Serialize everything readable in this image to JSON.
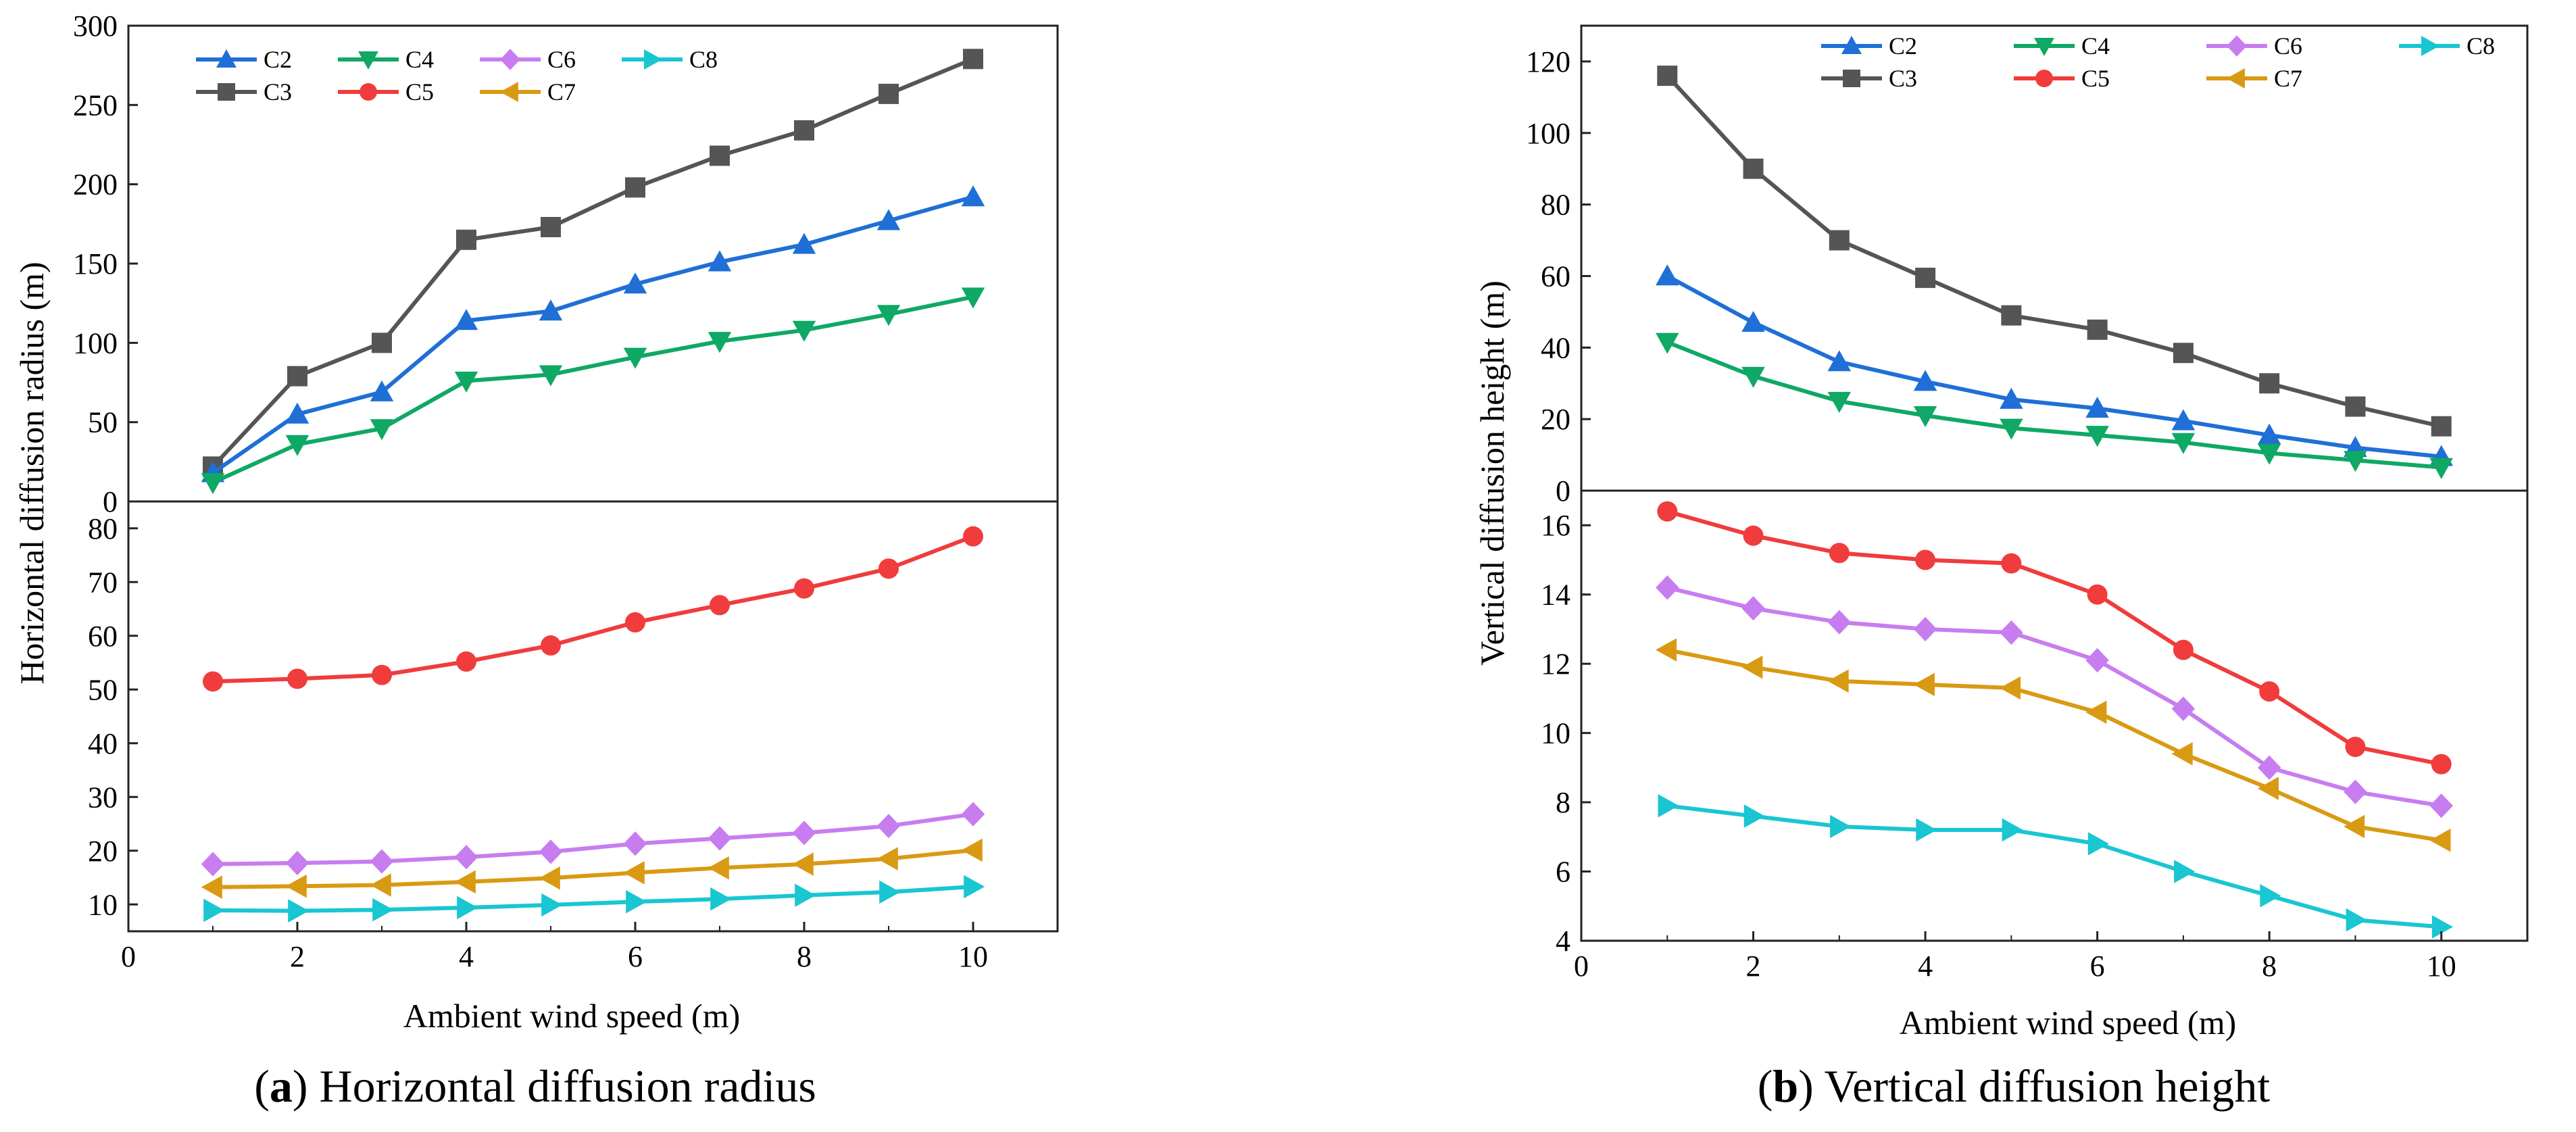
{
  "colors": {
    "C2": "#1f6fd6",
    "C3": "#555555",
    "C4": "#0fa864",
    "C5": "#f03c3c",
    "C6": "#c77df0",
    "C7": "#d99a13",
    "C8": "#19c6d1"
  },
  "markers": {
    "C2": "triangle-up",
    "C3": "square",
    "C4": "triangle-down",
    "C5": "circle",
    "C6": "diamond",
    "C7": "triangle-left",
    "C8": "triangle-right"
  },
  "chart_data": [
    {
      "type": "line",
      "id": "a",
      "caption_letter": "a",
      "caption_text": ") Horizontal diffusion radius",
      "caption_open": "(",
      "xlabel": "Ambient wind speed (m)",
      "ylabel": "Horizontal diffusion radius (m)",
      "xlim": [
        0,
        11
      ],
      "xticks": [
        0,
        2,
        4,
        6,
        8,
        10
      ],
      "x": [
        1,
        2,
        3,
        4,
        5,
        6,
        7,
        8,
        9,
        10
      ],
      "legend": {
        "row1": [
          "C2",
          "C4",
          "C6",
          "C8"
        ],
        "row2": [
          "C3",
          "C5",
          "C7"
        ]
      },
      "panels": [
        {
          "position": "top",
          "ylim": [
            0,
            300
          ],
          "yticks": [
            0,
            50,
            100,
            150,
            200,
            250,
            300
          ],
          "series": [
            {
              "name": "C3",
              "values": [
                22,
                79,
                100,
                165,
                173,
                198,
                218,
                234,
                257,
                279
              ]
            },
            {
              "name": "C2",
              "values": [
                18,
                55,
                69,
                114,
                120,
                137,
                151,
                162,
                177,
                192
              ]
            },
            {
              "name": "C4",
              "values": [
                12,
                36,
                46,
                76,
                80,
                91,
                101,
                108,
                118,
                129
              ]
            }
          ]
        },
        {
          "position": "bottom",
          "ylim": [
            5,
            85
          ],
          "yticks": [
            10,
            20,
            30,
            40,
            50,
            60,
            70,
            80
          ],
          "series": [
            {
              "name": "C5",
              "values": [
                51.5,
                52,
                52.7,
                55.2,
                58.2,
                62.5,
                65.7,
                68.8,
                72.5,
                78.5
              ]
            },
            {
              "name": "C6",
              "values": [
                17.5,
                17.7,
                18,
                18.8,
                19.8,
                21.3,
                22.3,
                23.3,
                24.6,
                26.8
              ]
            },
            {
              "name": "C7",
              "values": [
                13.2,
                13.4,
                13.6,
                14.2,
                14.9,
                15.9,
                16.8,
                17.5,
                18.5,
                20.1
              ]
            },
            {
              "name": "C8",
              "values": [
                8.9,
                8.8,
                9,
                9.4,
                9.9,
                10.5,
                11,
                11.7,
                12.3,
                13.3
              ]
            }
          ]
        }
      ]
    },
    {
      "type": "line",
      "id": "b",
      "caption_letter": "b",
      "caption_text": ") Vertical diffusion height",
      "caption_open": "(",
      "xlabel": "Ambient wind speed (m)",
      "ylabel": "Vertical diffusion height (m)",
      "xlim": [
        0,
        11
      ],
      "xticks": [
        0,
        2,
        4,
        6,
        8,
        10
      ],
      "x": [
        1,
        2,
        3,
        4,
        5,
        6,
        7,
        8,
        9,
        10
      ],
      "legend": {
        "row1": [
          "C2",
          "C4",
          "C6",
          "C8"
        ],
        "row2": [
          "C3",
          "C5",
          "C7"
        ]
      },
      "panels": [
        {
          "position": "top",
          "ylim": [
            0,
            130
          ],
          "yticks": [
            0,
            20,
            40,
            60,
            80,
            100,
            120
          ],
          "series": [
            {
              "name": "C3",
              "values": [
                116,
                90,
                70,
                59.5,
                49,
                45,
                38.5,
                30,
                23.5,
                18
              ]
            },
            {
              "name": "C2",
              "values": [
                60,
                47,
                36,
                30.5,
                25.5,
                23,
                19.5,
                15.5,
                12,
                9.5
              ]
            },
            {
              "name": "C4",
              "values": [
                41.5,
                32,
                25,
                21,
                17.5,
                15.5,
                13.5,
                10.5,
                8.5,
                6.5
              ]
            }
          ]
        },
        {
          "position": "bottom",
          "ylim": [
            4,
            17
          ],
          "yticks": [
            4,
            6,
            8,
            10,
            12,
            14,
            16
          ],
          "series": [
            {
              "name": "C5",
              "values": [
                16.4,
                15.7,
                15.2,
                15,
                14.9,
                14,
                12.4,
                11.2,
                9.6,
                9.1
              ]
            },
            {
              "name": "C6",
              "values": [
                14.2,
                13.6,
                13.2,
                13,
                12.9,
                12.1,
                10.7,
                9,
                8.3,
                7.9
              ]
            },
            {
              "name": "C7",
              "values": [
                12.4,
                11.9,
                11.5,
                11.4,
                11.3,
                10.6,
                9.4,
                8.4,
                7.3,
                6.9
              ]
            },
            {
              "name": "C8",
              "values": [
                7.9,
                7.6,
                7.3,
                7.2,
                7.2,
                6.8,
                6,
                5.3,
                4.6,
                4.4
              ]
            }
          ]
        }
      ]
    }
  ]
}
